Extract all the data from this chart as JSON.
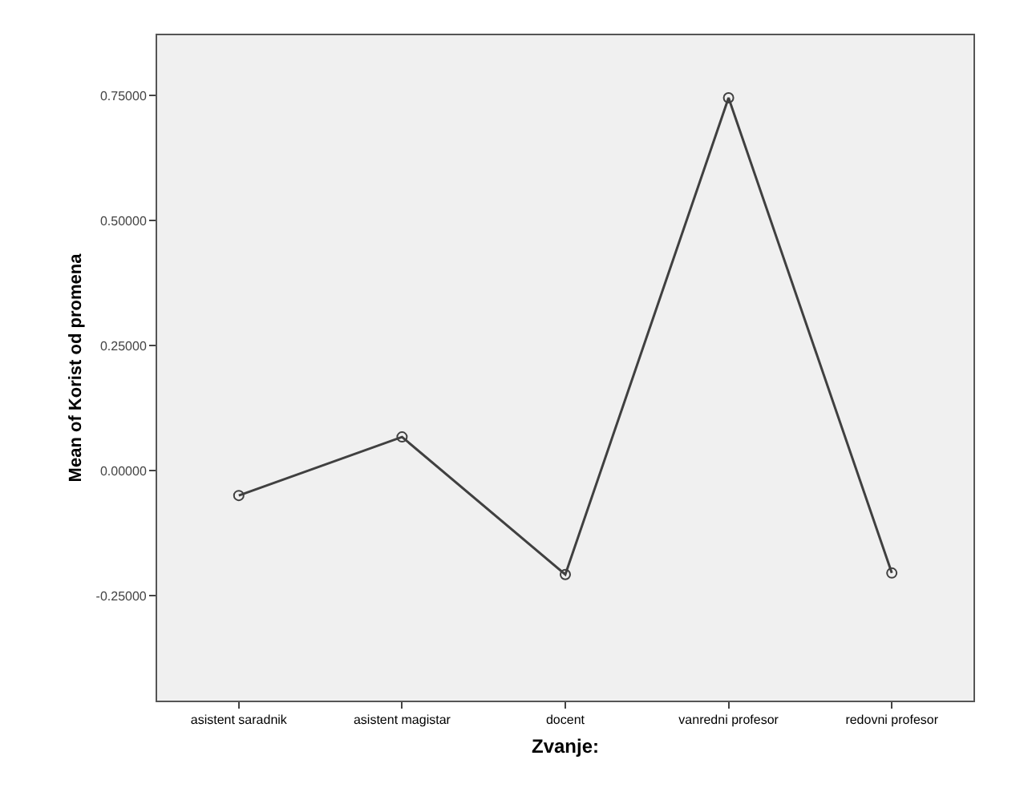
{
  "chart_data": {
    "type": "line",
    "xlabel": "Zvanje:",
    "ylabel": "Mean of Korist od promena",
    "categories": [
      "asistent saradnik",
      "asistent magistar",
      "docent",
      "vanredni profesor",
      "redovni profesor"
    ],
    "series": [
      {
        "color": "#404040",
        "values": [
          -0.05,
          0.067,
          -0.208,
          0.745,
          -0.205
        ]
      }
    ],
    "ylim": [
      -0.46,
      0.87
    ],
    "yticks": [
      {
        "value": -0.25,
        "label": "-0.25000"
      },
      {
        "value": 0,
        "label": "0.00000"
      },
      {
        "value": 0.25,
        "label": "0.25000"
      },
      {
        "value": 0.5,
        "label": "0.50000"
      },
      {
        "value": 0.75,
        "label": "0.75000"
      }
    ],
    "grid": false,
    "marker": "circle",
    "line_style": "solid"
  }
}
